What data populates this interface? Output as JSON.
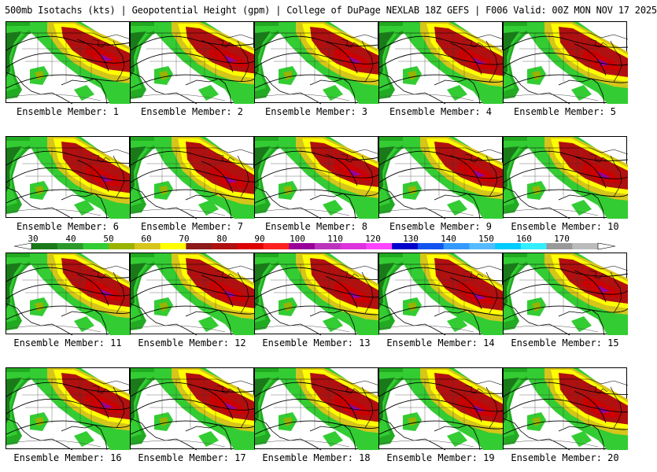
{
  "header": {
    "title": "500mb Isotachs (kts) | Geopotential Height (gpm) | College of DuPage NEXLAB   18Z GEFS | F006 Valid: 00Z MON NOV 17 2025"
  },
  "colorbar": {
    "labels": [
      "30",
      "40",
      "50",
      "60",
      "70",
      "80",
      "90",
      "100",
      "110",
      "120",
      "130",
      "140",
      "150",
      "160",
      "170"
    ],
    "colors": [
      "#1a7a1a",
      "#2b9a2b",
      "#33cc33",
      "#99b300",
      "#d6c51a",
      "#ffff00",
      "#8b1a1a",
      "#b01010",
      "#dd0000",
      "#ff2020",
      "#990099",
      "#bb33bb",
      "#dd33dd",
      "#ff44ff",
      "#0000cc",
      "#1155ee",
      "#3399ff",
      "#55bbff",
      "#00ccff",
      "#33eeff",
      "#999999",
      "#bbbbbb"
    ]
  },
  "members": [
    {
      "label": "Ensemble Member: 1"
    },
    {
      "label": "Ensemble Member: 2"
    },
    {
      "label": "Ensemble Member: 3"
    },
    {
      "label": "Ensemble Member: 4"
    },
    {
      "label": "Ensemble Member: 5"
    },
    {
      "label": "Ensemble Member: 6"
    },
    {
      "label": "Ensemble Member: 7"
    },
    {
      "label": "Ensemble Member: 8"
    },
    {
      "label": "Ensemble Member: 9"
    },
    {
      "label": "Ensemble Member: 10"
    },
    {
      "label": "Ensemble Member: 11"
    },
    {
      "label": "Ensemble Member: 12"
    },
    {
      "label": "Ensemble Member: 13"
    },
    {
      "label": "Ensemble Member: 14"
    },
    {
      "label": "Ensemble Member: 15"
    },
    {
      "label": "Ensemble Member: 16"
    },
    {
      "label": "Ensemble Member: 17"
    },
    {
      "label": "Ensemble Member: 18"
    },
    {
      "label": "Ensemble Member: 19"
    },
    {
      "label": "Ensemble Member: 20"
    }
  ]
}
